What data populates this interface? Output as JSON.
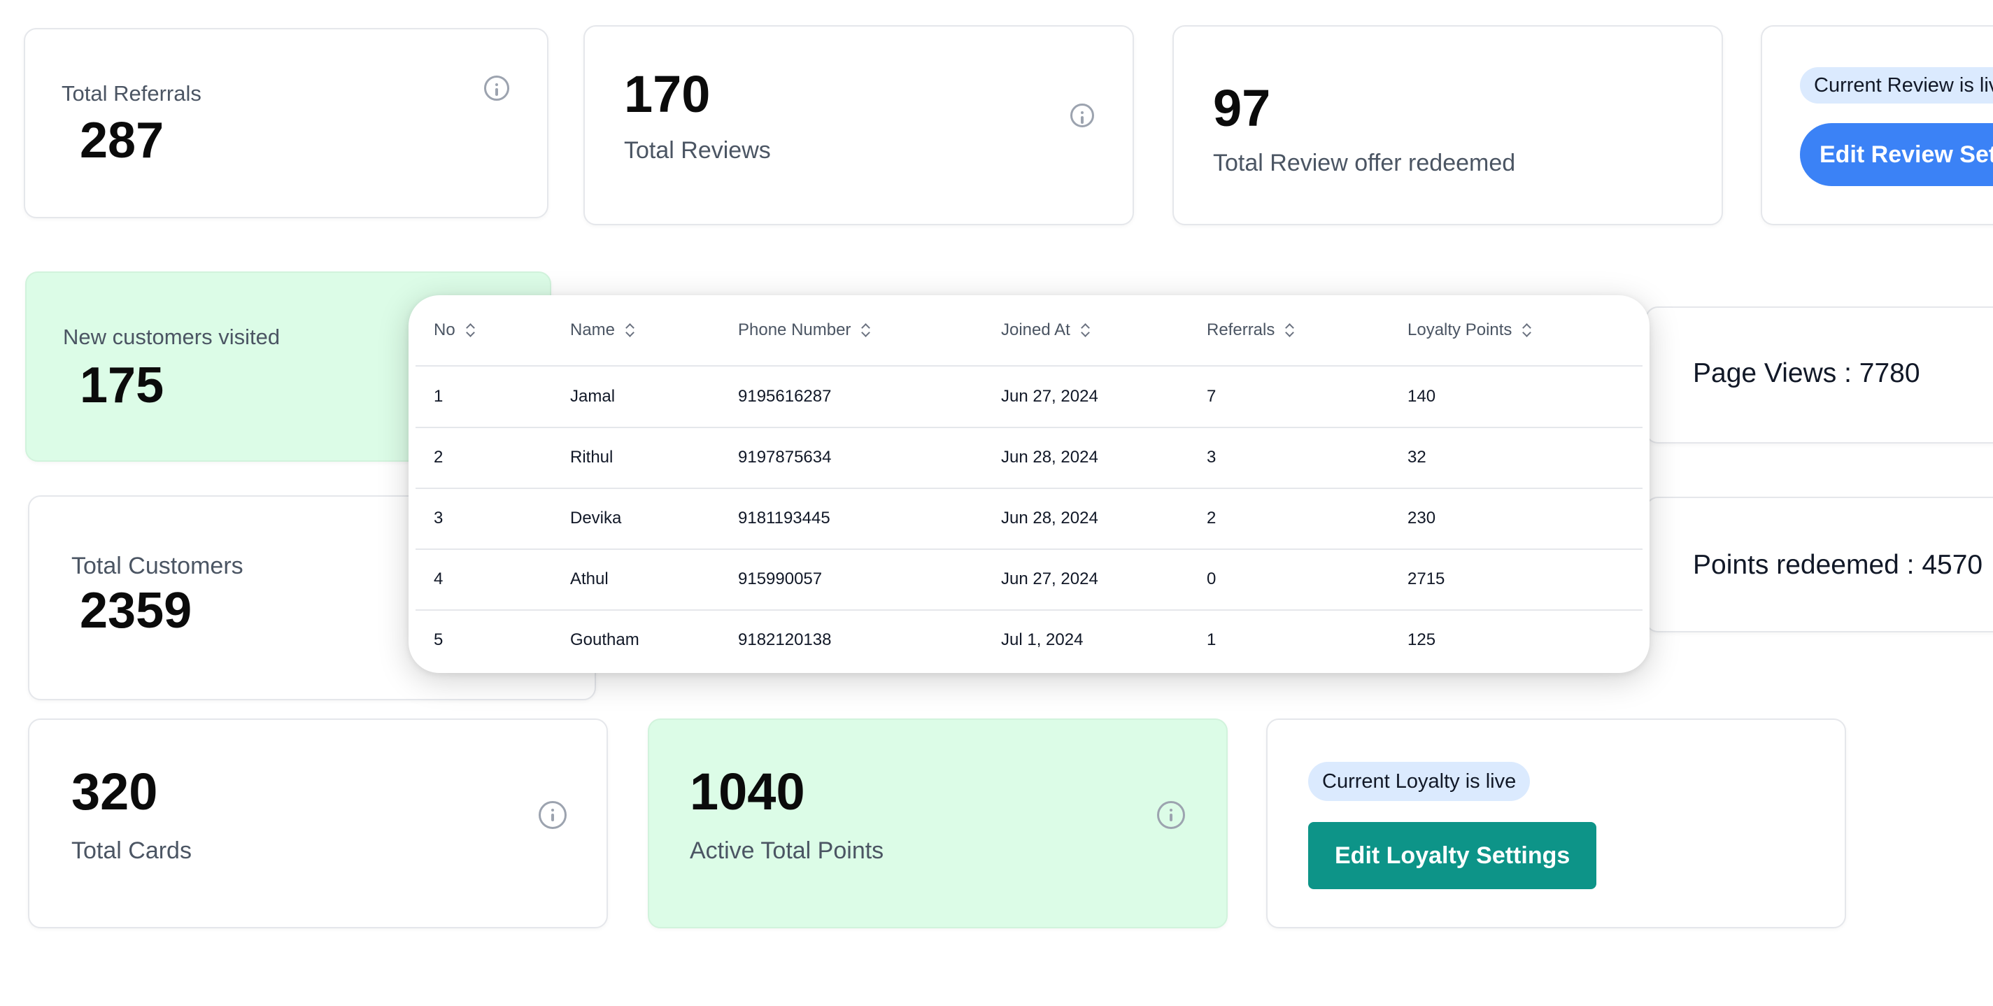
{
  "cards": {
    "total_referrals": {
      "label": "Total Referrals",
      "value": "287"
    },
    "total_reviews": {
      "value": "170",
      "label": "Total Reviews"
    },
    "review_offer": {
      "value": "97",
      "label": "Total Review offer redeemed"
    },
    "review_settings": {
      "status": "Current Review is live",
      "button": "Edit Review Settings"
    },
    "new_customers": {
      "label": "New customers visited",
      "value": "175"
    },
    "page_views": {
      "text": "Page Views : 7780"
    },
    "total_customers": {
      "label": "Total Customers",
      "value": "2359"
    },
    "points_redeemed": {
      "text": "Points redeemed : 4570"
    },
    "total_cards": {
      "value": "320",
      "label": "Total Cards"
    },
    "active_points": {
      "value": "1040",
      "label": "Active Total Points"
    },
    "loyalty_settings": {
      "status": "Current Loyalty is live",
      "button": "Edit Loyalty Settings"
    }
  },
  "table": {
    "headers": [
      "No",
      "Name",
      "Phone Number",
      "Joined At",
      "Referrals",
      "Loyalty Points"
    ],
    "rows": [
      [
        "1",
        "Jamal",
        "9195616287",
        "Jun 27, 2024",
        "7",
        "140"
      ],
      [
        "2",
        "Rithul",
        "9197875634",
        "Jun 28, 2024",
        "3",
        "32"
      ],
      [
        "3",
        "Devika",
        "9181193445",
        "Jun 28, 2024",
        "2",
        "230"
      ],
      [
        "4",
        "Athul",
        "915990057",
        "Jun 27, 2024",
        "0",
        "2715"
      ],
      [
        "5",
        "Goutham",
        "9182120138",
        "Jul 1, 2024",
        "1",
        "125"
      ]
    ]
  },
  "icons": [
    "info-icon",
    "sort-icon"
  ],
  "colors": {
    "green_card": "#dcfce7",
    "pill": "#dbeafe",
    "blue_button": "#3b82f6",
    "teal_button": "#0d9488"
  }
}
